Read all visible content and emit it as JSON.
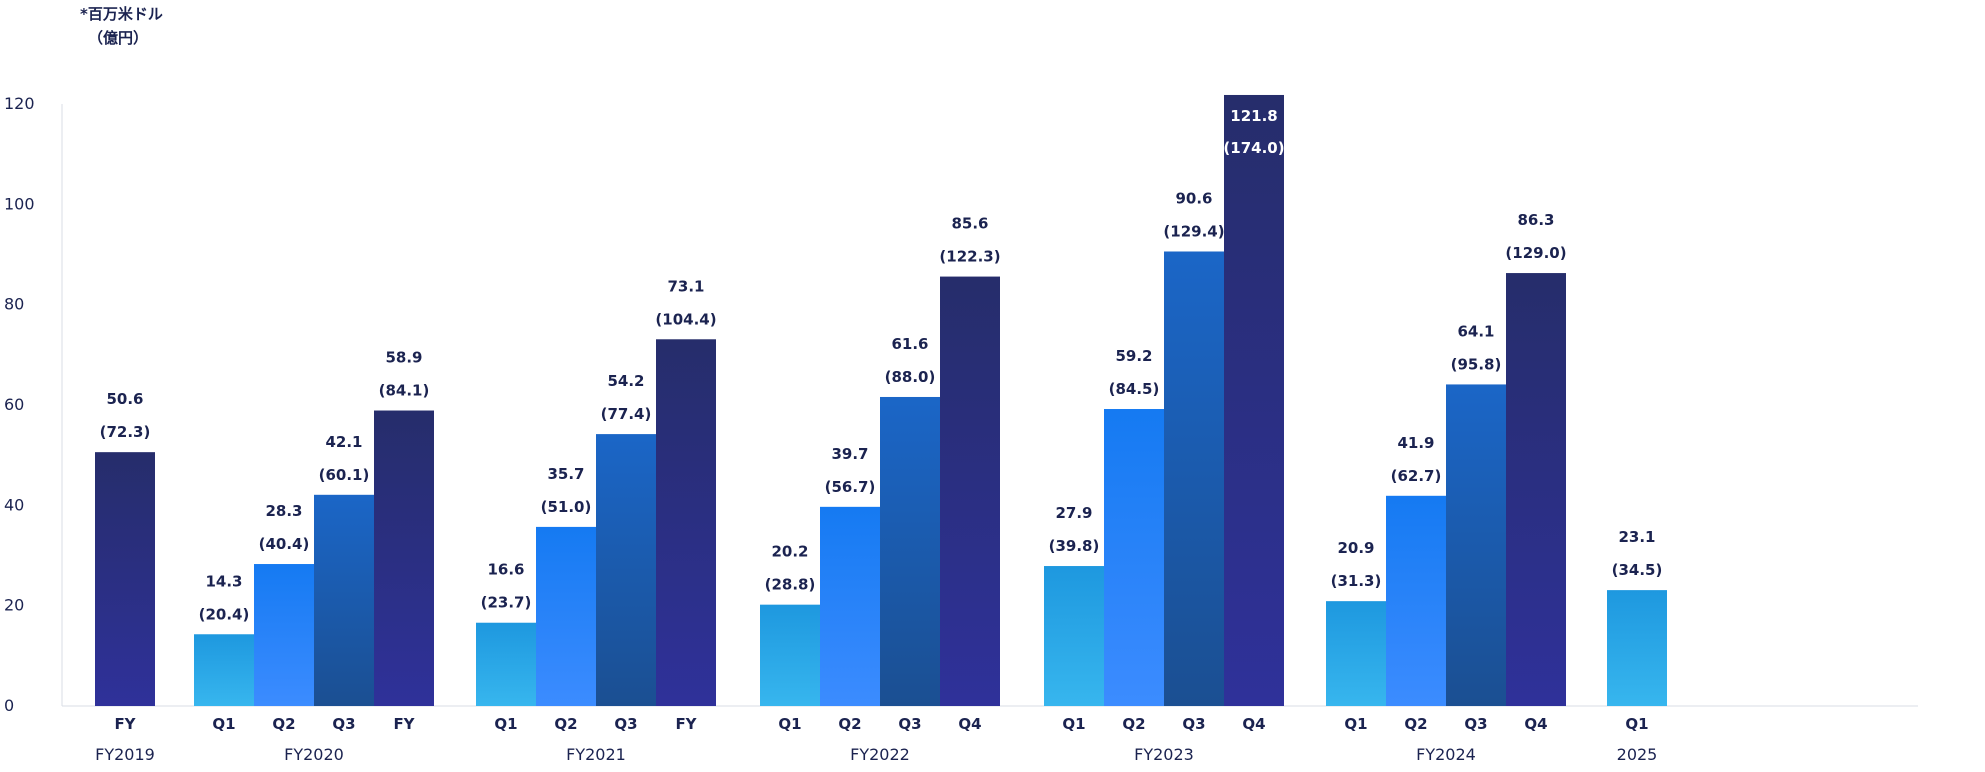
{
  "chart_data": {
    "type": "bar",
    "unit_label": "*百万米ドル",
    "unit_label_sub": "（億円）",
    "ylim": [
      0,
      120
    ],
    "yticks": [
      "0",
      "20",
      "40",
      "60",
      "80",
      "100",
      "120"
    ],
    "groups": [
      {
        "label": "FY2019",
        "bars": [
          {
            "category": "FY",
            "value": 50.6,
            "value_label": "50.6",
            "sub_label": "(72.3)",
            "series": "FY"
          }
        ]
      },
      {
        "label": "FY2020",
        "bars": [
          {
            "category": "Q1",
            "value": 14.3,
            "value_label": "14.3",
            "sub_label": "(20.4)",
            "series": "Q1"
          },
          {
            "category": "Q2",
            "value": 28.3,
            "value_label": "28.3",
            "sub_label": "(40.4)",
            "series": "Q2"
          },
          {
            "category": "Q3",
            "value": 42.1,
            "value_label": "42.1",
            "sub_label": "(60.1)",
            "series": "Q3"
          },
          {
            "category": "FY",
            "value": 58.9,
            "value_label": "58.9",
            "sub_label": "(84.1)",
            "series": "FY"
          }
        ]
      },
      {
        "label": "FY2021",
        "bars": [
          {
            "category": "Q1",
            "value": 16.6,
            "value_label": "16.6",
            "sub_label": "(23.7)",
            "series": "Q1"
          },
          {
            "category": "Q2",
            "value": 35.7,
            "value_label": "35.7",
            "sub_label": "(51.0)",
            "series": "Q2"
          },
          {
            "category": "Q3",
            "value": 54.2,
            "value_label": "54.2",
            "sub_label": "(77.4)",
            "series": "Q3"
          },
          {
            "category": "FY",
            "value": 73.1,
            "value_label": "73.1",
            "sub_label": "(104.4)",
            "series": "FY"
          }
        ]
      },
      {
        "label": "FY2022",
        "bars": [
          {
            "category": "Q1",
            "value": 20.2,
            "value_label": "20.2",
            "sub_label": "(28.8)",
            "series": "Q1"
          },
          {
            "category": "Q2",
            "value": 39.7,
            "value_label": "39.7",
            "sub_label": "(56.7)",
            "series": "Q2"
          },
          {
            "category": "Q3",
            "value": 61.6,
            "value_label": "61.6",
            "sub_label": "(88.0)",
            "series": "Q3"
          },
          {
            "category": "Q4",
            "value": 85.6,
            "value_label": "85.6",
            "sub_label": "(122.3)",
            "series": "FY"
          }
        ]
      },
      {
        "label": "FY2023",
        "bars": [
          {
            "category": "Q1",
            "value": 27.9,
            "value_label": "27.9",
            "sub_label": "(39.8)",
            "series": "Q1"
          },
          {
            "category": "Q2",
            "value": 59.2,
            "value_label": "59.2",
            "sub_label": "(84.5)",
            "series": "Q2"
          },
          {
            "category": "Q3",
            "value": 90.6,
            "value_label": "90.6",
            "sub_label": "(129.4)",
            "series": "Q3"
          },
          {
            "category": "Q4",
            "value": 121.8,
            "value_label": "121.8",
            "sub_label": "(174.0)",
            "series": "FY"
          }
        ]
      },
      {
        "label": "FY2024",
        "bars": [
          {
            "category": "Q1",
            "value": 20.9,
            "value_label": "20.9",
            "sub_label": "(31.3)",
            "series": "Q1"
          },
          {
            "category": "Q2",
            "value": 41.9,
            "value_label": "41.9",
            "sub_label": "(62.7)",
            "series": "Q2"
          },
          {
            "category": "Q3",
            "value": 64.1,
            "value_label": "64.1",
            "sub_label": "(95.8)",
            "series": "Q3"
          },
          {
            "category": "Q4",
            "value": 86.3,
            "value_label": "86.3",
            "sub_label": "(129.0)",
            "series": "FY"
          }
        ]
      },
      {
        "label": "2025",
        "bars": [
          {
            "category": "Q1",
            "value": 23.1,
            "value_label": "23.1",
            "sub_label": "(34.5)",
            "series": "Q1"
          }
        ]
      }
    ],
    "colors": {
      "Q1": [
        "#37b6ee",
        "#1e98df"
      ],
      "Q2": [
        "#3c8cff",
        "#157af2"
      ],
      "Q3": [
        "#1b4f92",
        "#1b66c7"
      ],
      "FY": [
        "#2f319a",
        "#262d6b"
      ],
      "axis": "#d9dde6",
      "text": "#1b2350"
    },
    "grid": false,
    "legend": "none"
  }
}
